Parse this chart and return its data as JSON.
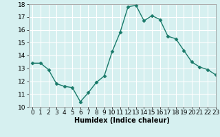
{
  "x": [
    0,
    1,
    2,
    3,
    4,
    5,
    6,
    7,
    8,
    9,
    10,
    11,
    12,
    13,
    14,
    15,
    16,
    17,
    18,
    19,
    20,
    21,
    22,
    23
  ],
  "y": [
    13.4,
    13.4,
    12.9,
    11.8,
    11.6,
    11.5,
    10.4,
    11.1,
    11.9,
    12.4,
    14.3,
    15.8,
    17.8,
    17.9,
    16.7,
    17.1,
    16.8,
    15.5,
    15.3,
    14.4,
    13.5,
    13.1,
    12.9,
    12.5
  ],
  "line_color": "#1a7a6a",
  "marker": "D",
  "marker_size": 2.5,
  "bg_color": "#d6f0f0",
  "grid_color": "#ffffff",
  "xlabel": "Humidex (Indice chaleur)",
  "ylim": [
    10,
    18
  ],
  "xlim": [
    -0.5,
    23
  ],
  "yticks": [
    10,
    11,
    12,
    13,
    14,
    15,
    16,
    17,
    18
  ],
  "xticks": [
    0,
    1,
    2,
    3,
    4,
    5,
    6,
    7,
    8,
    9,
    10,
    11,
    12,
    13,
    14,
    15,
    16,
    17,
    18,
    19,
    20,
    21,
    22,
    23
  ],
  "label_fontsize": 7,
  "tick_fontsize": 6.5
}
